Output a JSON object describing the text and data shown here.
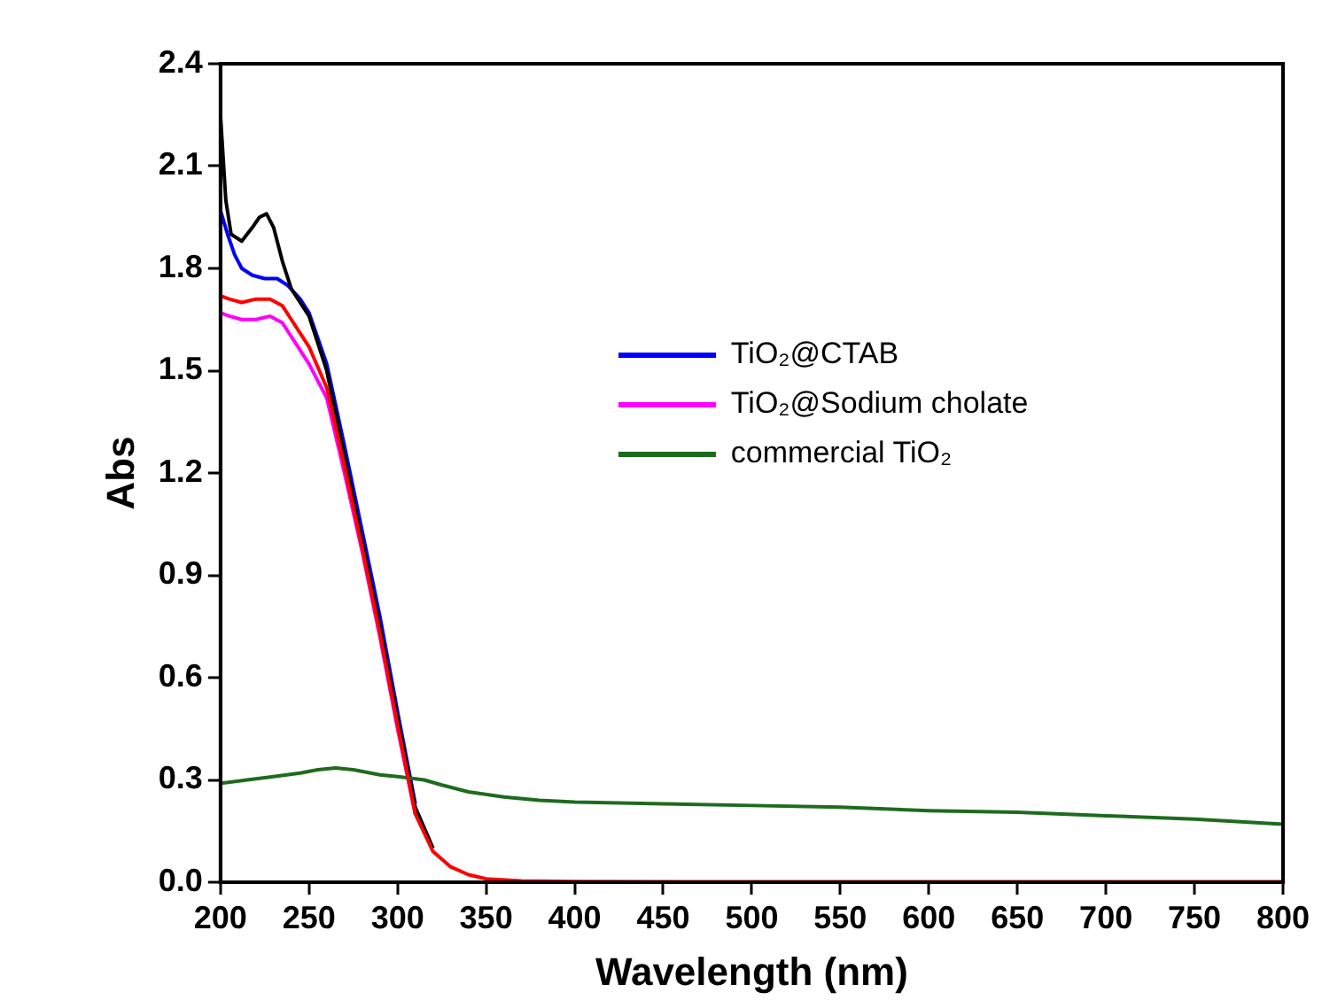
{
  "chart_data": {
    "type": "line",
    "xlabel": "Wavelength (nm)",
    "ylabel": "Abs",
    "xlim": [
      200,
      800
    ],
    "ylim": [
      0,
      2.4
    ],
    "xticks": [
      200,
      250,
      300,
      350,
      400,
      450,
      500,
      550,
      600,
      650,
      700,
      750,
      800
    ],
    "yticks": [
      {
        "value": 0,
        "label": "0.0"
      },
      0.3,
      0.6,
      0.9,
      1.2,
      1.5,
      1.8,
      2.1,
      2.4
    ],
    "grid": false,
    "legend": "top right",
    "marker": "none",
    "line_style": "solid",
    "series": [
      {
        "color": "#000000",
        "x": [
          200,
          203,
          206,
          212,
          218,
          222,
          226,
          230,
          235,
          240,
          245,
          250,
          260,
          270,
          280,
          290,
          300,
          310,
          320
        ],
        "values": [
          2.25,
          2.0,
          1.9,
          1.88,
          1.92,
          1.95,
          1.96,
          1.92,
          1.82,
          1.74,
          1.7,
          1.66,
          1.5,
          1.25,
          1.0,
          0.75,
          0.48,
          0.22,
          0.1
        ]
      },
      {
        "color": "#ff0000",
        "x": [
          200,
          205,
          212,
          220,
          228,
          235,
          240,
          245,
          250,
          260,
          270,
          280,
          290,
          300,
          310,
          320,
          330,
          340,
          350,
          370,
          400,
          500,
          600,
          700,
          800
        ],
        "values": [
          1.72,
          1.71,
          1.7,
          1.71,
          1.71,
          1.69,
          1.65,
          1.61,
          1.57,
          1.45,
          1.22,
          0.98,
          0.73,
          0.46,
          0.2,
          0.09,
          0.045,
          0.022,
          0.01,
          0.004,
          0.002,
          0.001,
          0.001,
          0.001,
          0.001
        ]
      },
      {
        "name": "TiO₂@CTAB",
        "color": "#0000ff",
        "x": [
          200,
          204,
          208,
          212,
          218,
          225,
          232,
          238,
          245,
          250,
          260,
          270,
          280,
          290,
          300,
          310
        ],
        "values": [
          1.97,
          1.9,
          1.84,
          1.8,
          1.78,
          1.77,
          1.77,
          1.75,
          1.71,
          1.67,
          1.52,
          1.28,
          1.03,
          0.78,
          0.5,
          0.23
        ]
      },
      {
        "name": "TiO₂@Sodium cholate",
        "color": "#ff00ff",
        "x": [
          200,
          205,
          212,
          220,
          228,
          235,
          240,
          245,
          250,
          260,
          270,
          280,
          290,
          300,
          310
        ],
        "values": [
          1.67,
          1.66,
          1.65,
          1.65,
          1.66,
          1.64,
          1.6,
          1.56,
          1.52,
          1.42,
          1.2,
          0.97,
          0.72,
          0.45,
          0.2
        ]
      },
      {
        "name": "commercial TiO₂",
        "color": "#1e6b1e",
        "x": [
          200,
          215,
          230,
          245,
          255,
          265,
          275,
          290,
          300,
          315,
          325,
          340,
          360,
          380,
          400,
          450,
          500,
          550,
          600,
          650,
          700,
          750,
          800
        ],
        "values": [
          0.29,
          0.3,
          0.31,
          0.32,
          0.33,
          0.335,
          0.33,
          0.315,
          0.31,
          0.3,
          0.285,
          0.265,
          0.25,
          0.24,
          0.235,
          0.23,
          0.225,
          0.22,
          0.21,
          0.205,
          0.195,
          0.185,
          0.17
        ]
      }
    ]
  }
}
